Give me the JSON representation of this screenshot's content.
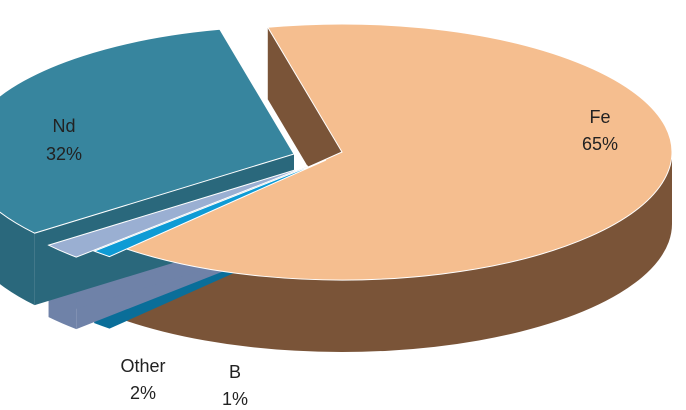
{
  "chart_data": {
    "type": "pie",
    "three_d": true,
    "exploded": true,
    "title": "",
    "slices": [
      {
        "label": "Fe",
        "value": 65,
        "value_label": "65%",
        "top_color": "#F5BE8F",
        "side_color": "#7A5438"
      },
      {
        "label": "B",
        "value": 1,
        "value_label": "1%",
        "top_color": "#0E9BD5",
        "side_color": "#0A6E99"
      },
      {
        "label": "Other",
        "value": 2,
        "value_label": "2%",
        "top_color": "#9AAFD2",
        "side_color": "#6F82A8"
      },
      {
        "label": "Nd",
        "value": 32,
        "value_label": "32%",
        "top_color": "#37859E",
        "side_color": "#2A687C"
      }
    ],
    "legend": "none"
  }
}
